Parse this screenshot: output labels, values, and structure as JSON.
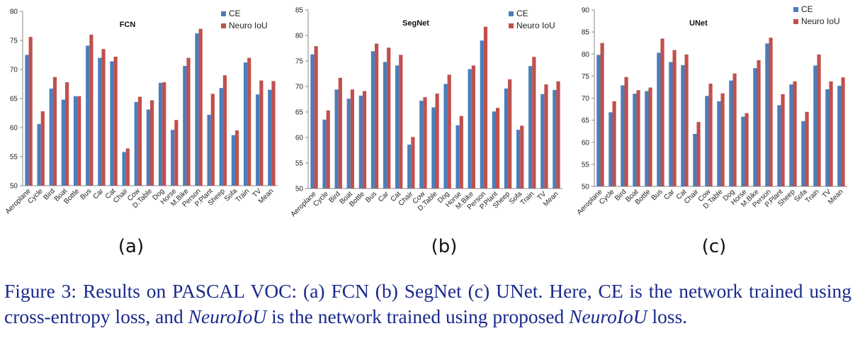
{
  "colors": {
    "ce": "#4a7ebb",
    "neuro": "#c0504d",
    "axis": "#888888"
  },
  "panel_labels": [
    "(a)",
    "(b)",
    "(c)"
  ],
  "caption": {
    "prefix": "Figure 3: Results on PASCAL VOC: (a) FCN (b) SegNet (c) UNet. Here, CE is the network trained using cross-entropy loss, and ",
    "italic1": "NeuroIoU",
    "middle": " is the network trained using proposed ",
    "italic2": "NeuroIoU",
    "suffix": " loss."
  },
  "chart_data": [
    {
      "type": "bar",
      "title": "FCN",
      "categories": [
        "Aeroplane",
        "Cycle",
        "Bird",
        "Boat",
        "Bottle",
        "Bus",
        "Car",
        "Cat",
        "Chair",
        "Cow",
        "D.Table",
        "Dog",
        "Horse",
        "M.Bike",
        "Person",
        "P.Plant",
        "Sheep",
        "Sofa",
        "Train",
        "TV",
        "Mean"
      ],
      "series": [
        {
          "name": "CE",
          "values": [
            72.5,
            60.6,
            66.7,
            64.8,
            65.4,
            74.1,
            72.0,
            71.4,
            55.8,
            64.4,
            63.1,
            67.7,
            59.6,
            70.6,
            76.2,
            62.2,
            66.8,
            58.7,
            71.2,
            65.7,
            66.5
          ]
        },
        {
          "name": "Neuro IoU",
          "values": [
            75.6,
            62.8,
            68.7,
            67.8,
            65.4,
            76.0,
            73.5,
            72.2,
            56.4,
            65.3,
            64.7,
            67.8,
            61.3,
            72.0,
            77.0,
            65.8,
            69.0,
            59.5,
            72.0,
            68.1,
            68.0
          ]
        }
      ],
      "ylim": [
        50,
        80
      ],
      "yticks": [
        50,
        55,
        60,
        65,
        70,
        75,
        80
      ],
      "legend": "top-right",
      "xlabel": "",
      "ylabel": ""
    },
    {
      "type": "bar",
      "title": "SegNet",
      "categories": [
        "Aeroplane",
        "Cycle",
        "Bird",
        "Boat",
        "Bottle",
        "Bus",
        "Car",
        "Cat",
        "Chair",
        "Cow",
        "D.Table",
        "Dog",
        "Horse",
        "M.Bike",
        "Person",
        "P.Plant",
        "Sheep",
        "Sofa",
        "Train",
        "TV",
        "Mean"
      ],
      "series": [
        {
          "name": "CE",
          "values": [
            76.3,
            63.5,
            69.4,
            67.6,
            68.2,
            76.9,
            74.8,
            74.1,
            58.6,
            67.2,
            65.9,
            70.5,
            62.4,
            73.4,
            79.0,
            65.1,
            69.6,
            61.5,
            74.0,
            68.5,
            69.3
          ]
        },
        {
          "name": "Neuro IoU",
          "values": [
            77.9,
            65.3,
            71.7,
            69.4,
            69.1,
            78.4,
            77.6,
            76.2,
            60.1,
            67.9,
            68.6,
            72.3,
            64.2,
            74.1,
            81.7,
            65.8,
            71.4,
            62.3,
            75.8,
            70.4,
            71.0
          ]
        }
      ],
      "ylim": [
        50,
        85
      ],
      "yticks": [
        50,
        55,
        60,
        65,
        70,
        75,
        80,
        85
      ],
      "legend": "top-right",
      "xlabel": "",
      "ylabel": ""
    },
    {
      "type": "bar",
      "title": "UNet",
      "categories": [
        "Aeroplane",
        "Cycle",
        "Bird",
        "Boat",
        "Bottle",
        "Bus",
        "Car",
        "Cat",
        "Chair",
        "Cow",
        "D.Table",
        "Dog",
        "Horse",
        "M.Bike",
        "Person",
        "P.Plant",
        "Sheep",
        "Sofa",
        "Train",
        "TV",
        "Mean"
      ],
      "series": [
        {
          "name": "CE",
          "values": [
            79.8,
            66.8,
            72.9,
            71.0,
            71.6,
            80.3,
            78.2,
            77.5,
            61.9,
            70.5,
            69.3,
            74.0,
            65.8,
            76.8,
            82.4,
            68.4,
            73.1,
            64.8,
            77.4,
            72.0,
            72.8
          ]
        },
        {
          "name": "Neuro IoU",
          "values": [
            82.5,
            69.3,
            74.8,
            71.8,
            72.4,
            83.5,
            80.9,
            79.9,
            64.6,
            73.3,
            71.1,
            75.6,
            66.6,
            78.6,
            83.7,
            70.9,
            73.8,
            66.9,
            79.9,
            73.8,
            74.7
          ]
        }
      ],
      "ylim": [
        50,
        90
      ],
      "yticks": [
        50,
        55,
        60,
        65,
        70,
        75,
        80,
        85,
        90
      ],
      "legend": "top-right",
      "xlabel": "",
      "ylabel": ""
    }
  ]
}
